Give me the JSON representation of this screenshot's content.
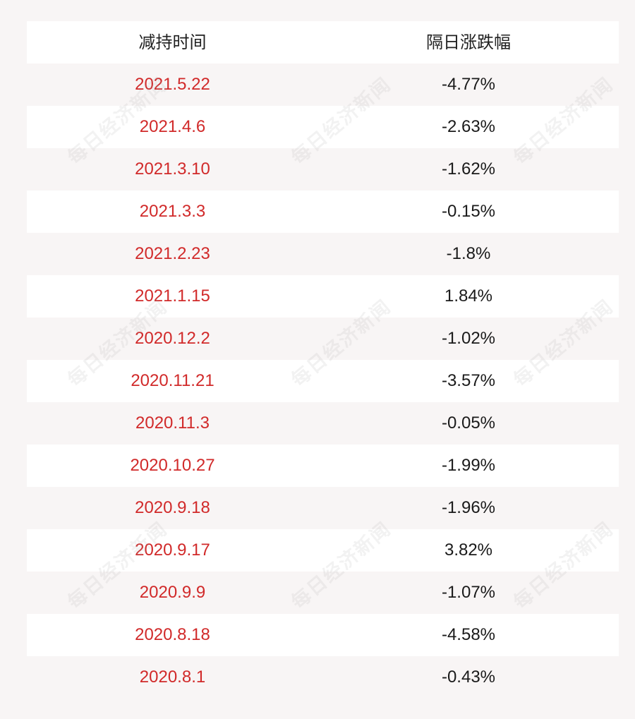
{
  "table": {
    "headers": {
      "date": "减持时间",
      "change": "隔日涨跌幅"
    },
    "rows": [
      {
        "date": "2021.5.22",
        "change": "-4.77%"
      },
      {
        "date": "2021.4.6",
        "change": "-2.63%"
      },
      {
        "date": "2021.3.10",
        "change": "-1.62%"
      },
      {
        "date": "2021.3.3",
        "change": "-0.15%"
      },
      {
        "date": "2021.2.23",
        "change": "-1.8%"
      },
      {
        "date": "2021.1.15",
        "change": "1.84%"
      },
      {
        "date": "2020.12.2",
        "change": "-1.02%"
      },
      {
        "date": "2020.11.21",
        "change": "-3.57%"
      },
      {
        "date": "2020.11.3",
        "change": "-0.05%"
      },
      {
        "date": "2020.10.27",
        "change": "-1.99%"
      },
      {
        "date": "2020.9.18",
        "change": "-1.96%"
      },
      {
        "date": "2020.9.17",
        "change": "3.82%"
      },
      {
        "date": "2020.9.9",
        "change": "-1.07%"
      },
      {
        "date": "2020.8.18",
        "change": "-4.58%"
      },
      {
        "date": "2020.8.1",
        "change": "-0.43%"
      }
    ]
  },
  "watermark": {
    "text": "每日经济新闻"
  },
  "colors": {
    "background": "#f8f5f5",
    "row_white": "#ffffff",
    "date_text": "#d12a2a",
    "value_text": "#1a1a1a"
  }
}
